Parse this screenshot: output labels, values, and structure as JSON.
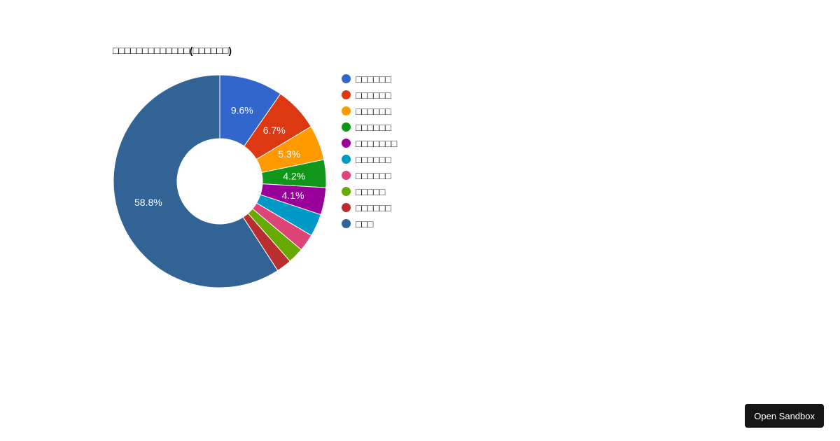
{
  "chart_data": {
    "type": "pie",
    "title": "□□□□□□□□□□□□□(□□□□□□)",
    "donut": true,
    "legend_position": "right",
    "slices": [
      {
        "label": "□□□□□□",
        "value": 9.6,
        "display": "9.6%",
        "color": "#3366cc"
      },
      {
        "label": "□□□□□□",
        "value": 6.7,
        "display": "6.7%",
        "color": "#dc3912"
      },
      {
        "label": "□□□□□□",
        "value": 5.3,
        "display": "5.3%",
        "color": "#ff9900"
      },
      {
        "label": "□□□□□□",
        "value": 4.2,
        "display": "4.2%",
        "color": "#109618"
      },
      {
        "label": "□□□□□□□",
        "value": 4.1,
        "display": "4.1%",
        "color": "#990099"
      },
      {
        "label": "□□□□□□",
        "value": 3.4,
        "display": "",
        "color": "#0099c6"
      },
      {
        "label": "□□□□□□",
        "value": 2.6,
        "display": "",
        "color": "#dd4477"
      },
      {
        "label": "□□□□□",
        "value": 2.4,
        "display": "",
        "color": "#66aa00"
      },
      {
        "label": "□□□□□□",
        "value": 2.3,
        "display": "",
        "color": "#b82e2e"
      },
      {
        "label": "□□□",
        "value": 58.8,
        "display": "58.8%",
        "color": "#316395"
      }
    ]
  },
  "footer": {
    "open_sandbox_label": "Open Sandbox"
  }
}
